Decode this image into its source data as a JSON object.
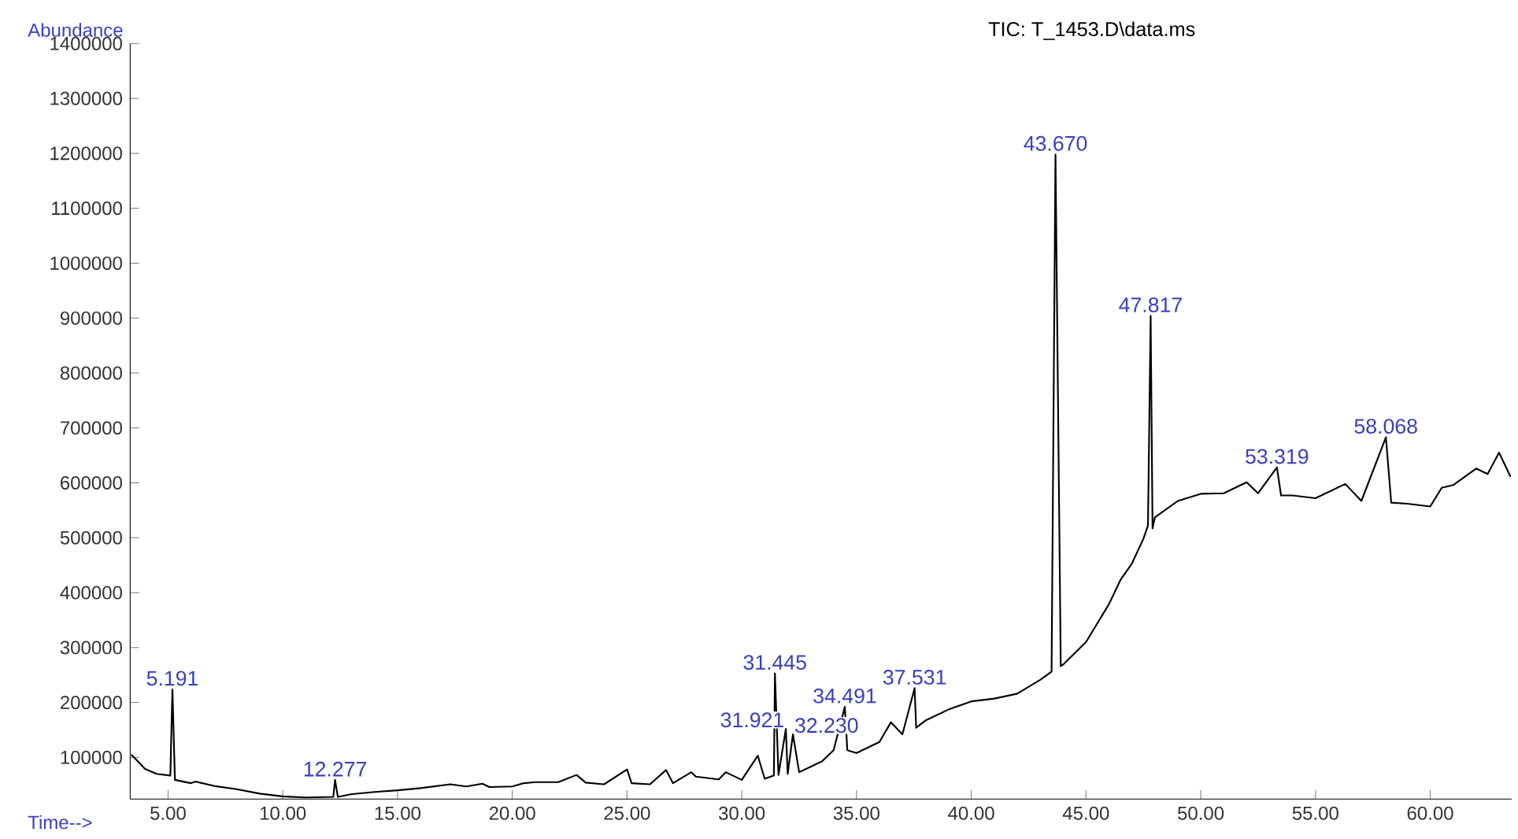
{
  "chart_data": {
    "type": "line",
    "title": "TIC: T_1453.D\\data.ms",
    "xlabel": "Time-->",
    "ylabel": "Abundance",
    "x": [
      3.4,
      4.0,
      4.5,
      5.1,
      5.191,
      5.3,
      6.0,
      6.2,
      7.0,
      8.0,
      9.0,
      10.0,
      11.0,
      12.2,
      12.277,
      12.4,
      13.0,
      14.0,
      15.0,
      16.0,
      17.3,
      18.0,
      18.7,
      19.0,
      20.0,
      20.5,
      21.0,
      22.0,
      22.8,
      23.2,
      24.0,
      25.0,
      25.2,
      26.0,
      26.7,
      27.0,
      27.8,
      28.0,
      29.0,
      29.3,
      30.0,
      30.7,
      31.0,
      31.4,
      31.445,
      31.6,
      31.921,
      32.0,
      32.23,
      32.5,
      33.5,
      34.0,
      34.491,
      34.6,
      35.0,
      36.0,
      36.5,
      37.0,
      37.531,
      37.6,
      38.0,
      39.0,
      40.0,
      41.0,
      42.0,
      43.0,
      43.5,
      43.67,
      43.9,
      44.0,
      45.0,
      46.0,
      46.5,
      47.0,
      47.5,
      47.7,
      47.817,
      47.9,
      48.0,
      49.0,
      50.0,
      51.0,
      52.0,
      52.5,
      53.319,
      53.5,
      54.0,
      55.0,
      56.3,
      57.0,
      58.068,
      58.3,
      59.0,
      60.0,
      60.5,
      61.0,
      62.0,
      62.5,
      63.0,
      63.5
    ],
    "series": [
      {
        "color": "#000000",
        "values": [
          105000,
          79000,
          70000,
          67000,
          224000,
          59000,
          53000,
          56000,
          48000,
          42000,
          34000,
          29000,
          27000,
          28000,
          59000,
          28000,
          33000,
          37000,
          40000,
          44000,
          51000,
          47000,
          52000,
          46000,
          47000,
          53000,
          55000,
          55000,
          68000,
          54000,
          51000,
          78000,
          53000,
          51000,
          77000,
          53000,
          73000,
          65000,
          60000,
          73000,
          59000,
          103000,
          61000,
          67000,
          253000,
          68000,
          152000,
          70000,
          142000,
          73000,
          93000,
          113000,
          192000,
          113000,
          108000,
          128000,
          164000,
          142000,
          226000,
          154000,
          167000,
          187000,
          202000,
          207000,
          216000,
          241000,
          256000,
          1198000,
          266000,
          269000,
          310000,
          379000,
          423000,
          453000,
          498000,
          522000,
          904000,
          517000,
          537000,
          567000,
          580000,
          581000,
          601000,
          581000,
          628000,
          577000,
          577000,
          572000,
          598000,
          567000,
          683000,
          564000,
          562000,
          557000,
          591000,
          596000,
          626000,
          616000,
          655000,
          611000
        ]
      }
    ],
    "xlim": [
      3.35,
      63.55
    ],
    "ylim": [
      24000,
      1400000
    ],
    "xticks": [
      {
        "value": 5,
        "label": "5.00"
      },
      {
        "value": 10,
        "label": "10.00"
      },
      {
        "value": 15,
        "label": "15.00"
      },
      {
        "value": 20,
        "label": "20.00"
      },
      {
        "value": 25,
        "label": "25.00"
      },
      {
        "value": 30,
        "label": "30.00"
      },
      {
        "value": 35,
        "label": "35.00"
      },
      {
        "value": 40,
        "label": "40.00"
      },
      {
        "value": 45,
        "label": "45.00"
      },
      {
        "value": 50,
        "label": "50.00"
      },
      {
        "value": 55,
        "label": "55.00"
      },
      {
        "value": 60,
        "label": "60.00"
      }
    ],
    "yticks": [
      100000,
      200000,
      300000,
      400000,
      500000,
      600000,
      700000,
      800000,
      900000,
      1000000,
      1100000,
      1200000,
      1300000,
      1400000
    ],
    "annotations": [
      {
        "text": "5.191",
        "x": 5.191,
        "y": 224000
      },
      {
        "text": "12.277",
        "x": 12.277,
        "y": 59000
      },
      {
        "text": "31.445",
        "x": 31.445,
        "y": 253000
      },
      {
        "text": "31.921",
        "x": 31.921,
        "y": 152000
      },
      {
        "text": "32.230",
        "x": 32.23,
        "y": 142000
      },
      {
        "text": "34.491",
        "x": 34.491,
        "y": 192000
      },
      {
        "text": "37.531",
        "x": 37.531,
        "y": 226000
      },
      {
        "text": "43.670",
        "x": 43.67,
        "y": 1198000
      },
      {
        "text": "47.817",
        "x": 47.817,
        "y": 904000
      },
      {
        "text": "53.319",
        "x": 53.319,
        "y": 628000
      },
      {
        "text": "58.068",
        "x": 58.068,
        "y": 683000
      }
    ],
    "grid": false
  }
}
